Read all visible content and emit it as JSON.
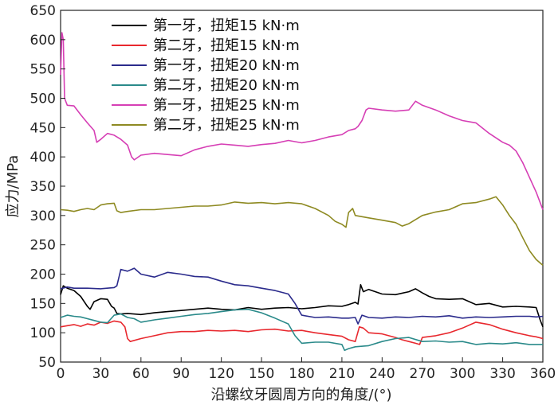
{
  "chart_data": {
    "type": "line",
    "title": "",
    "xlabel": "沿螺纹牙圆周方向的角度/(°)",
    "ylabel": "应力/MPa",
    "xlim": [
      0,
      360
    ],
    "ylim": [
      50,
      650
    ],
    "xticks": [
      "0",
      "30",
      "60",
      "90",
      "120",
      "150",
      "180",
      "210",
      "240",
      "270",
      "300",
      "330",
      "360"
    ],
    "yticks": [
      "650",
      "600",
      "550",
      "500",
      "450",
      "400",
      "350",
      "300",
      "250",
      "200",
      "150",
      "100",
      "50"
    ],
    "grid": false,
    "legend_position": "top-center",
    "series": [
      {
        "name": "第一牙，扭矩15 kN·m",
        "color": "#000000",
        "points": [
          [
            0,
            165
          ],
          [
            2,
            180
          ],
          [
            5,
            176
          ],
          [
            10,
            172
          ],
          [
            15,
            162
          ],
          [
            20,
            145
          ],
          [
            22,
            140
          ],
          [
            25,
            153
          ],
          [
            30,
            158
          ],
          [
            35,
            157
          ],
          [
            38,
            145
          ],
          [
            40,
            142
          ],
          [
            42,
            133
          ],
          [
            45,
            132
          ],
          [
            50,
            133
          ],
          [
            60,
            131
          ],
          [
            70,
            134
          ],
          [
            80,
            136
          ],
          [
            90,
            138
          ],
          [
            100,
            140
          ],
          [
            110,
            142
          ],
          [
            120,
            140
          ],
          [
            130,
            139
          ],
          [
            140,
            143
          ],
          [
            150,
            140
          ],
          [
            160,
            142
          ],
          [
            170,
            143
          ],
          [
            180,
            141
          ],
          [
            190,
            143
          ],
          [
            200,
            146
          ],
          [
            210,
            145
          ],
          [
            215,
            148
          ],
          [
            220,
            152
          ],
          [
            222,
            149
          ],
          [
            224,
            182
          ],
          [
            226,
            170
          ],
          [
            230,
            174
          ],
          [
            240,
            166
          ],
          [
            250,
            165
          ],
          [
            260,
            170
          ],
          [
            265,
            175
          ],
          [
            270,
            168
          ],
          [
            275,
            162
          ],
          [
            280,
            158
          ],
          [
            290,
            157
          ],
          [
            300,
            158
          ],
          [
            310,
            148
          ],
          [
            320,
            150
          ],
          [
            330,
            144
          ],
          [
            340,
            145
          ],
          [
            350,
            144
          ],
          [
            355,
            143
          ],
          [
            358,
            122
          ],
          [
            360,
            110
          ]
        ]
      },
      {
        "name": "第二牙，扭矩15 kN·m",
        "color": "#e8282e",
        "points": [
          [
            0,
            110
          ],
          [
            5,
            112
          ],
          [
            10,
            114
          ],
          [
            15,
            111
          ],
          [
            20,
            115
          ],
          [
            25,
            113
          ],
          [
            30,
            118
          ],
          [
            35,
            116
          ],
          [
            40,
            120
          ],
          [
            45,
            118
          ],
          [
            48,
            110
          ],
          [
            50,
            90
          ],
          [
            52,
            85
          ],
          [
            60,
            90
          ],
          [
            70,
            95
          ],
          [
            80,
            100
          ],
          [
            90,
            102
          ],
          [
            100,
            102
          ],
          [
            110,
            104
          ],
          [
            120,
            103
          ],
          [
            130,
            104
          ],
          [
            140,
            102
          ],
          [
            150,
            105
          ],
          [
            160,
            106
          ],
          [
            170,
            103
          ],
          [
            180,
            104
          ],
          [
            190,
            100
          ],
          [
            200,
            97
          ],
          [
            210,
            94
          ],
          [
            215,
            88
          ],
          [
            220,
            85
          ],
          [
            223,
            110
          ],
          [
            226,
            108
          ],
          [
            230,
            100
          ],
          [
            240,
            98
          ],
          [
            250,
            92
          ],
          [
            255,
            88
          ],
          [
            260,
            85
          ],
          [
            265,
            82
          ],
          [
            268,
            80
          ],
          [
            270,
            92
          ],
          [
            280,
            95
          ],
          [
            290,
            100
          ],
          [
            300,
            108
          ],
          [
            310,
            118
          ],
          [
            320,
            114
          ],
          [
            330,
            106
          ],
          [
            340,
            100
          ],
          [
            350,
            95
          ],
          [
            355,
            93
          ],
          [
            360,
            90
          ]
        ]
      },
      {
        "name": "第一牙，扭矩20 kN·m",
        "color": "#2b2b8c",
        "points": [
          [
            0,
            175
          ],
          [
            5,
            178
          ],
          [
            10,
            176
          ],
          [
            20,
            176
          ],
          [
            30,
            175
          ],
          [
            40,
            177
          ],
          [
            42,
            180
          ],
          [
            45,
            208
          ],
          [
            50,
            205
          ],
          [
            55,
            210
          ],
          [
            60,
            200
          ],
          [
            70,
            195
          ],
          [
            80,
            203
          ],
          [
            90,
            200
          ],
          [
            100,
            196
          ],
          [
            110,
            195
          ],
          [
            120,
            188
          ],
          [
            130,
            182
          ],
          [
            140,
            180
          ],
          [
            150,
            176
          ],
          [
            160,
            172
          ],
          [
            170,
            166
          ],
          [
            175,
            150
          ],
          [
            180,
            130
          ],
          [
            190,
            126
          ],
          [
            200,
            127
          ],
          [
            210,
            125
          ],
          [
            215,
            125
          ],
          [
            220,
            126
          ],
          [
            222,
            115
          ],
          [
            225,
            130
          ],
          [
            230,
            126
          ],
          [
            240,
            125
          ],
          [
            250,
            127
          ],
          [
            260,
            126
          ],
          [
            270,
            128
          ],
          [
            280,
            127
          ],
          [
            290,
            129
          ],
          [
            300,
            125
          ],
          [
            310,
            127
          ],
          [
            320,
            126
          ],
          [
            330,
            127
          ],
          [
            340,
            128
          ],
          [
            350,
            128
          ],
          [
            355,
            127
          ],
          [
            360,
            128
          ]
        ]
      },
      {
        "name": "第二牙，扭矩20 kN·m",
        "color": "#2a8a8a",
        "points": [
          [
            0,
            126
          ],
          [
            5,
            130
          ],
          [
            10,
            128
          ],
          [
            15,
            127
          ],
          [
            20,
            124
          ],
          [
            25,
            121
          ],
          [
            30,
            118
          ],
          [
            35,
            117
          ],
          [
            40,
            130
          ],
          [
            45,
            132
          ],
          [
            50,
            126
          ],
          [
            55,
            124
          ],
          [
            60,
            118
          ],
          [
            70,
            122
          ],
          [
            80,
            125
          ],
          [
            90,
            128
          ],
          [
            100,
            131
          ],
          [
            110,
            133
          ],
          [
            120,
            136
          ],
          [
            130,
            139
          ],
          [
            140,
            140
          ],
          [
            150,
            134
          ],
          [
            160,
            125
          ],
          [
            170,
            115
          ],
          [
            175,
            95
          ],
          [
            180,
            82
          ],
          [
            190,
            84
          ],
          [
            200,
            84
          ],
          [
            210,
            80
          ],
          [
            212,
            70
          ],
          [
            215,
            73
          ],
          [
            220,
            76
          ],
          [
            230,
            78
          ],
          [
            240,
            85
          ],
          [
            250,
            90
          ],
          [
            260,
            92
          ],
          [
            270,
            85
          ],
          [
            280,
            86
          ],
          [
            290,
            84
          ],
          [
            300,
            85
          ],
          [
            310,
            80
          ],
          [
            320,
            82
          ],
          [
            330,
            81
          ],
          [
            340,
            83
          ],
          [
            350,
            80
          ],
          [
            360,
            80
          ]
        ]
      },
      {
        "name": "第一牙，扭矩25 kN·m",
        "color": "#d63fb5",
        "points": [
          [
            0,
            540
          ],
          [
            1,
            612
          ],
          [
            2,
            600
          ],
          [
            3,
            500
          ],
          [
            5,
            488
          ],
          [
            10,
            487
          ],
          [
            15,
            472
          ],
          [
            20,
            458
          ],
          [
            25,
            445
          ],
          [
            27,
            425
          ],
          [
            30,
            430
          ],
          [
            35,
            440
          ],
          [
            40,
            437
          ],
          [
            45,
            430
          ],
          [
            50,
            420
          ],
          [
            53,
            400
          ],
          [
            55,
            395
          ],
          [
            60,
            403
          ],
          [
            70,
            406
          ],
          [
            80,
            404
          ],
          [
            90,
            402
          ],
          [
            100,
            412
          ],
          [
            110,
            418
          ],
          [
            120,
            422
          ],
          [
            130,
            420
          ],
          [
            140,
            418
          ],
          [
            150,
            421
          ],
          [
            160,
            423
          ],
          [
            170,
            428
          ],
          [
            180,
            424
          ],
          [
            190,
            428
          ],
          [
            200,
            434
          ],
          [
            210,
            438
          ],
          [
            215,
            445
          ],
          [
            220,
            448
          ],
          [
            222,
            452
          ],
          [
            225,
            462
          ],
          [
            228,
            480
          ],
          [
            230,
            483
          ],
          [
            240,
            480
          ],
          [
            250,
            478
          ],
          [
            260,
            480
          ],
          [
            265,
            495
          ],
          [
            270,
            488
          ],
          [
            280,
            480
          ],
          [
            290,
            470
          ],
          [
            300,
            462
          ],
          [
            310,
            458
          ],
          [
            320,
            440
          ],
          [
            330,
            425
          ],
          [
            335,
            420
          ],
          [
            340,
            410
          ],
          [
            345,
            390
          ],
          [
            350,
            365
          ],
          [
            355,
            340
          ],
          [
            360,
            310
          ]
        ]
      },
      {
        "name": "第二牙，扭矩25 kN·m",
        "color": "#8e8a22",
        "points": [
          [
            0,
            310
          ],
          [
            5,
            309
          ],
          [
            10,
            307
          ],
          [
            15,
            310
          ],
          [
            20,
            312
          ],
          [
            25,
            310
          ],
          [
            30,
            318
          ],
          [
            35,
            320
          ],
          [
            40,
            321
          ],
          [
            42,
            308
          ],
          [
            45,
            305
          ],
          [
            50,
            307
          ],
          [
            60,
            310
          ],
          [
            70,
            310
          ],
          [
            80,
            312
          ],
          [
            90,
            314
          ],
          [
            100,
            316
          ],
          [
            110,
            316
          ],
          [
            120,
            318
          ],
          [
            130,
            323
          ],
          [
            140,
            321
          ],
          [
            150,
            322
          ],
          [
            160,
            320
          ],
          [
            170,
            322
          ],
          [
            180,
            320
          ],
          [
            190,
            312
          ],
          [
            200,
            300
          ],
          [
            205,
            290
          ],
          [
            210,
            285
          ],
          [
            213,
            280
          ],
          [
            215,
            305
          ],
          [
            218,
            312
          ],
          [
            220,
            300
          ],
          [
            225,
            298
          ],
          [
            230,
            296
          ],
          [
            240,
            292
          ],
          [
            250,
            288
          ],
          [
            255,
            282
          ],
          [
            260,
            286
          ],
          [
            270,
            300
          ],
          [
            280,
            306
          ],
          [
            290,
            310
          ],
          [
            300,
            320
          ],
          [
            310,
            322
          ],
          [
            320,
            328
          ],
          [
            325,
            332
          ],
          [
            330,
            318
          ],
          [
            335,
            300
          ],
          [
            340,
            285
          ],
          [
            345,
            262
          ],
          [
            350,
            240
          ],
          [
            355,
            225
          ],
          [
            360,
            215
          ]
        ]
      }
    ]
  }
}
